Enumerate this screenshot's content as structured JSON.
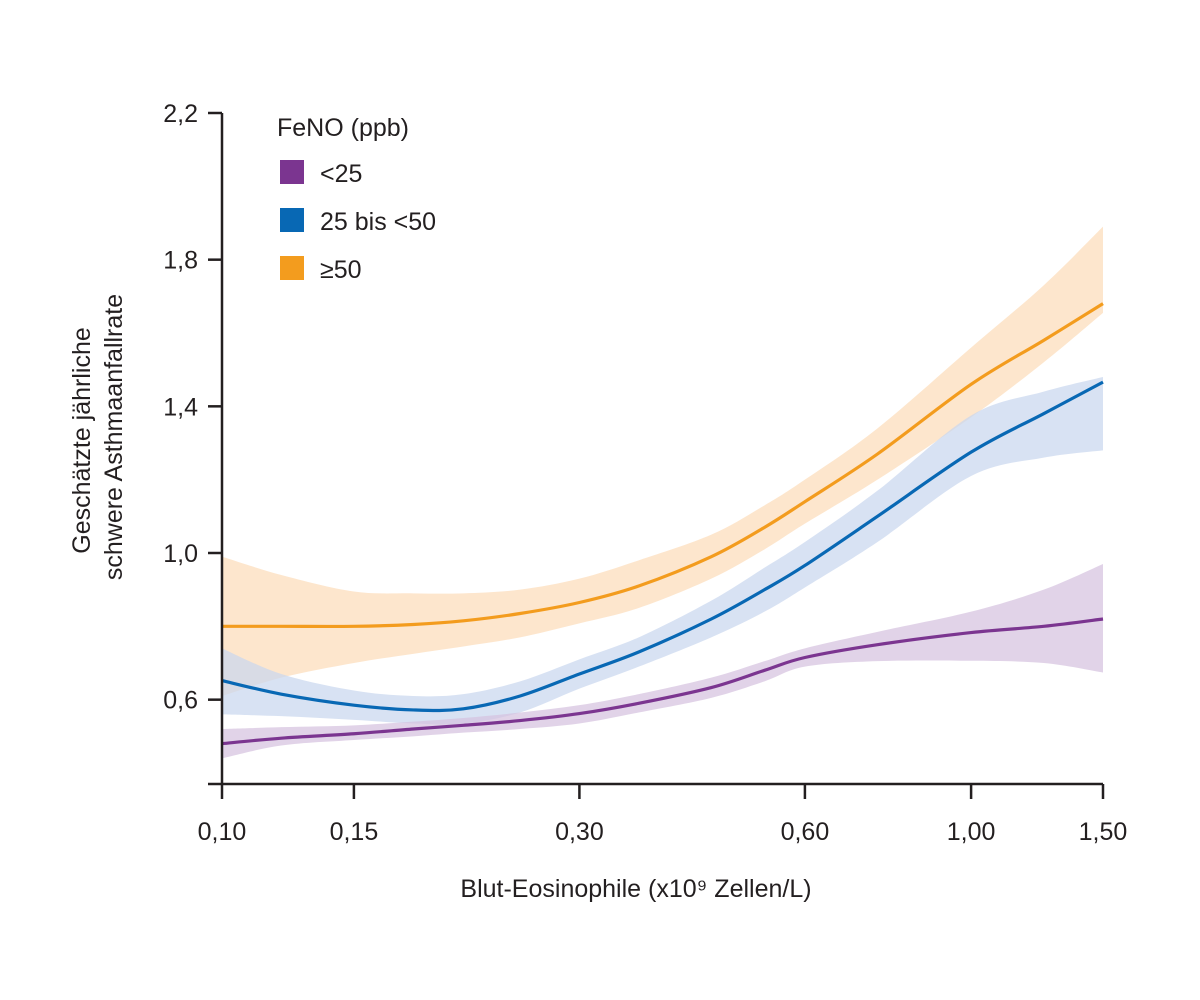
{
  "chart_data": {
    "type": "line",
    "title": "",
    "xlabel": "Blut-Eosinophile (x10⁹ Zellen/L)",
    "ylabel_lines": [
      "Geschätzte jährliche",
      "schwere Asthmaanfallrate"
    ],
    "x_scale": "log",
    "xlim": [
      0.1,
      1.5
    ],
    "ylim": [
      0.37,
      2.2
    ],
    "x_ticks": [
      0.1,
      0.15,
      0.3,
      0.6,
      1.0,
      1.5
    ],
    "x_tick_labels": [
      "0,10",
      "0,15",
      "0,30",
      "0,60",
      "1,00",
      "1,50"
    ],
    "y_ticks": [
      0.6,
      1.0,
      1.4,
      1.8,
      2.2
    ],
    "y_tick_labels": [
      "0,6",
      "1,0",
      "1,4",
      "1,8",
      "2,2"
    ],
    "grid": false,
    "legend": {
      "title": "FeNO (ppb)",
      "placement": "top-left"
    },
    "x": [
      0.1,
      0.12,
      0.15,
      0.18,
      0.21,
      0.25,
      0.3,
      0.36,
      0.45,
      0.53,
      0.6,
      0.75,
      1.0,
      1.25,
      1.5
    ],
    "series": [
      {
        "name": "≥50",
        "color": "#f39c1e",
        "band_color": "#fcddba",
        "values": [
          0.8,
          0.8,
          0.8,
          0.805,
          0.815,
          0.835,
          0.865,
          0.91,
          0.99,
          1.07,
          1.14,
          1.27,
          1.46,
          1.58,
          1.68
        ],
        "upper": [
          0.99,
          0.94,
          0.895,
          0.89,
          0.89,
          0.9,
          0.93,
          0.98,
          1.05,
          1.13,
          1.2,
          1.34,
          1.56,
          1.73,
          1.89
        ],
        "lower": [
          0.61,
          0.66,
          0.7,
          0.725,
          0.745,
          0.77,
          0.808,
          0.85,
          0.93,
          1.01,
          1.08,
          1.2,
          1.37,
          1.52,
          1.655
        ]
      },
      {
        "name": "25 bis <50",
        "color": "#0868b4",
        "band_color": "#c9d7ee",
        "values": [
          0.652,
          0.615,
          0.585,
          0.572,
          0.575,
          0.61,
          0.67,
          0.73,
          0.82,
          0.9,
          0.966,
          1.1,
          1.275,
          1.38,
          1.466
        ],
        "upper": [
          0.74,
          0.67,
          0.625,
          0.61,
          0.615,
          0.65,
          0.71,
          0.77,
          0.87,
          0.96,
          1.03,
          1.17,
          1.375,
          1.44,
          1.48
        ],
        "lower": [
          0.56,
          0.555,
          0.545,
          0.535,
          0.535,
          0.565,
          0.63,
          0.69,
          0.77,
          0.84,
          0.906,
          1.03,
          1.21,
          1.26,
          1.28
        ]
      },
      {
        "name": "<25",
        "color": "#7b3590",
        "band_color": "#d6c2df",
        "values": [
          0.48,
          0.495,
          0.507,
          0.52,
          0.53,
          0.543,
          0.562,
          0.59,
          0.633,
          0.68,
          0.715,
          0.75,
          0.783,
          0.8,
          0.82
        ],
        "upper": [
          0.52,
          0.525,
          0.53,
          0.54,
          0.55,
          0.565,
          0.585,
          0.615,
          0.66,
          0.705,
          0.74,
          0.785,
          0.84,
          0.9,
          0.97
        ],
        "lower": [
          0.44,
          0.475,
          0.49,
          0.5,
          0.51,
          0.52,
          0.535,
          0.565,
          0.605,
          0.65,
          0.69,
          0.705,
          0.706,
          0.7,
          0.674
        ]
      }
    ],
    "legend_order": [
      "<25",
      "25 bis <50",
      "≥50"
    ]
  }
}
